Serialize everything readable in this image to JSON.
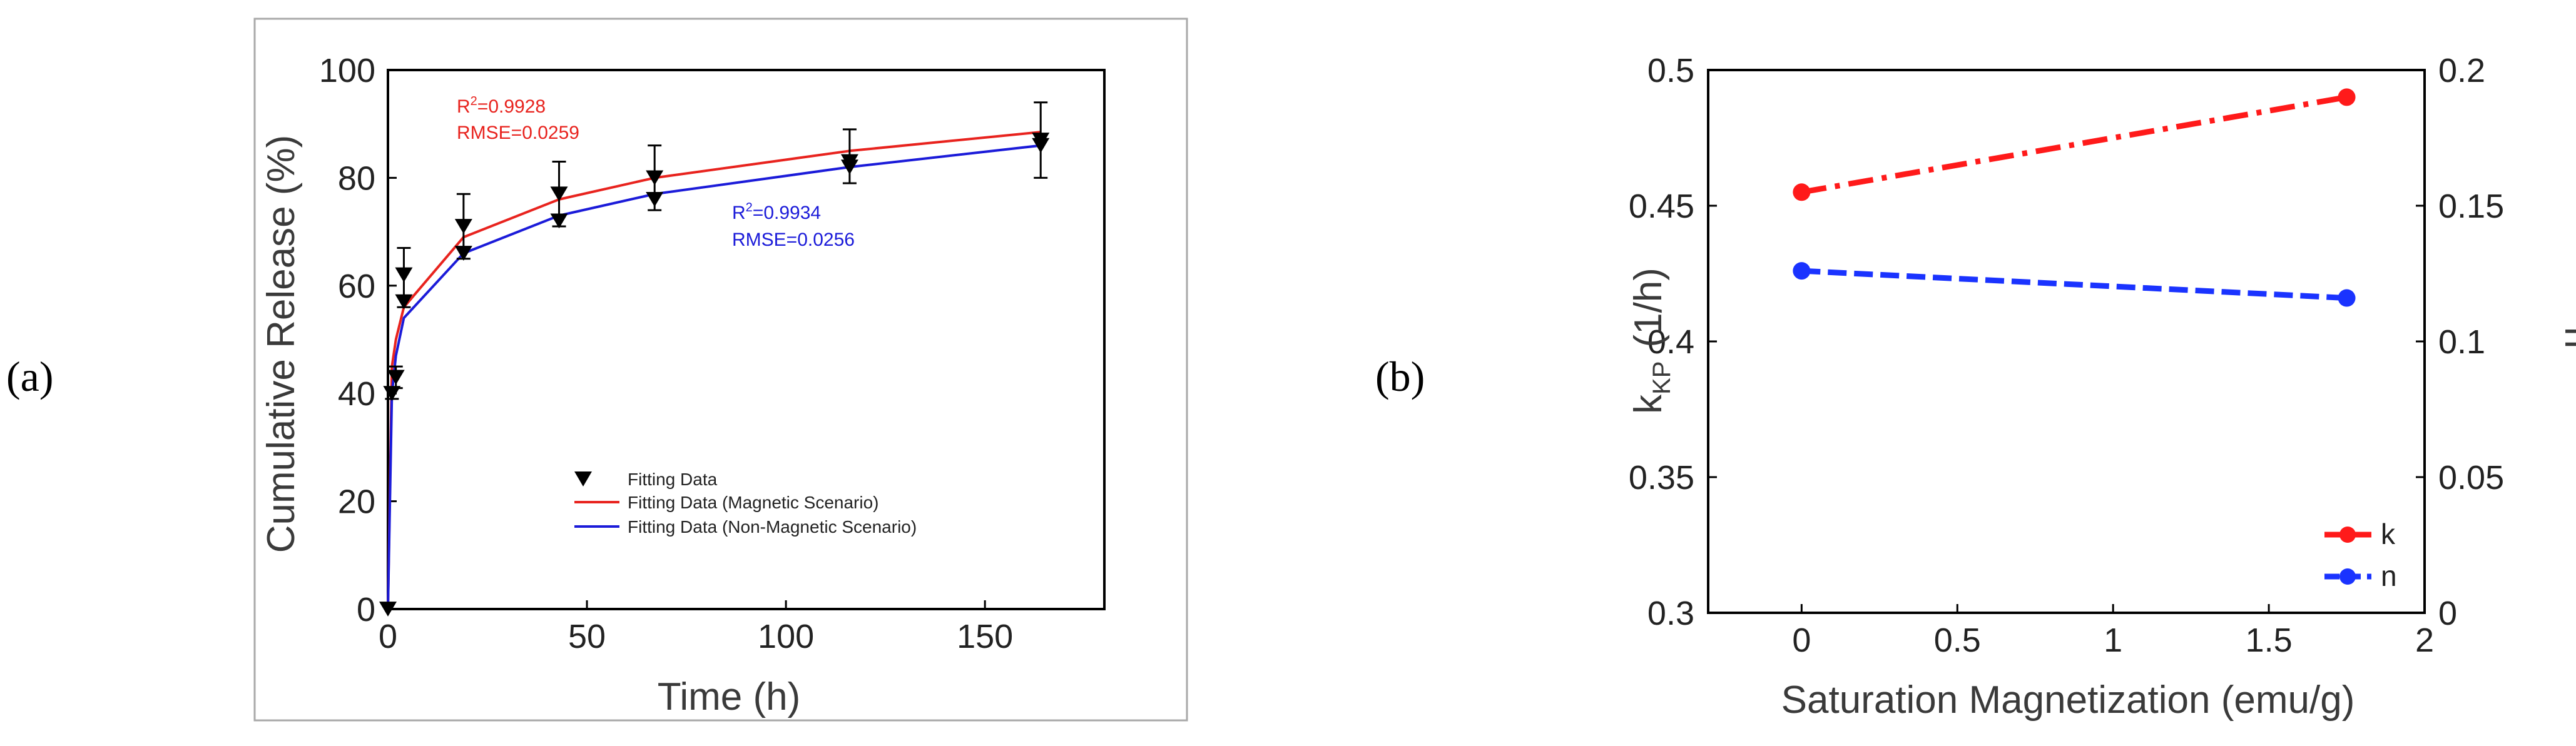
{
  "panels": {
    "a_label": "(a)",
    "b_label": "(b)"
  },
  "chart_data": [
    {
      "type": "line",
      "panel": "(a)",
      "title": "",
      "xlabel": "Time (h)",
      "ylabel": "Cumulative Release (%)",
      "xlim": [
        0,
        180
      ],
      "ylim": [
        0,
        100
      ],
      "xticks": [
        0,
        50,
        100,
        150
      ],
      "yticks": [
        0,
        20,
        40,
        60,
        80,
        100
      ],
      "grid": false,
      "legend_position": "bottom-center",
      "series": [
        {
          "name": "Fitting Data",
          "style": "triangle-down markers with error bars",
          "color": "#000000",
          "x": [
            0,
            1,
            2,
            4,
            19,
            43,
            67,
            116,
            164
          ],
          "y": [
            0,
            40,
            43,
            57,
            66,
            72,
            76,
            82,
            86
          ],
          "error": [
            0,
            0,
            0,
            0,
            0,
            0,
            0,
            0,
            0
          ],
          "upper": [
            0,
            41,
            45,
            67,
            77,
            83,
            86,
            89,
            94
          ],
          "lower": [
            0,
            39,
            41,
            56,
            65,
            71,
            74,
            79,
            80
          ],
          "upper_markers": [
            null,
            null,
            null,
            62,
            71,
            77,
            80,
            83,
            87
          ]
        },
        {
          "name": "Fitting Data (Magnetic Scenario)",
          "color": "#e8231e",
          "x": [
            0,
            1,
            2,
            4,
            19,
            43,
            67,
            116,
            164
          ],
          "y": [
            0,
            45,
            50,
            56,
            69,
            76,
            80,
            85,
            88.5
          ]
        },
        {
          "name": "Fitting Data (Non-Magnetic Scenario)",
          "color": "#1b1bd9",
          "x": [
            0,
            1,
            2,
            4,
            19,
            43,
            67,
            116,
            164
          ],
          "y": [
            0,
            40,
            47,
            54,
            66,
            73,
            77,
            82,
            86
          ]
        }
      ],
      "annotations": [
        {
          "line1_prefix": "R",
          "line1_sup": "2",
          "line1_suffix": "=0.9928",
          "line2": "RMSE=0.0259",
          "color": "#e8231e"
        },
        {
          "line1_prefix": "R",
          "line1_sup": "2",
          "line1_suffix": "=0.9934",
          "line2": "RMSE=0.0256",
          "color": "#1b1bd9"
        }
      ]
    },
    {
      "type": "line",
      "panel": "(b)",
      "title": "",
      "xlabel": "Saturation Magnetization (emu/g)",
      "ylabel_left_main": "k",
      "ylabel_left_sub": "KP",
      "ylabel_left_unit": "(1/h)",
      "ylabel_right": "n",
      "xlim": [
        -0.3,
        2
      ],
      "ylim_left": [
        0.3,
        0.5
      ],
      "ylim_right": [
        0,
        0.2
      ],
      "xticks": [
        0,
        0.5,
        1,
        1.5,
        2
      ],
      "xtick_labels": [
        "0",
        "0.5",
        "1",
        "1.5",
        "2"
      ],
      "yticks_left": [
        0.3,
        0.35,
        0.4,
        0.45,
        0.5
      ],
      "yticks_left_labels": [
        "0.3",
        "0.35",
        "0.4",
        "0.45",
        "0.5"
      ],
      "yticks_right": [
        0,
        0.05,
        0.1,
        0.15,
        0.2
      ],
      "yticks_right_labels": [
        "0",
        "0.05",
        "0.1",
        "0.15",
        "0.2"
      ],
      "grid": false,
      "legend_position": "bottom-right",
      "series": [
        {
          "name": "k",
          "axis": "left",
          "style": "dash-dot",
          "color": "#ff1a1a",
          "x": [
            0,
            1.75
          ],
          "y": [
            0.455,
            0.49
          ]
        },
        {
          "name": "n",
          "axis": "right",
          "style": "dashed",
          "color": "#1a33ff",
          "x": [
            0,
            1.75
          ],
          "y": [
            0.126,
            0.116
          ]
        }
      ]
    }
  ]
}
